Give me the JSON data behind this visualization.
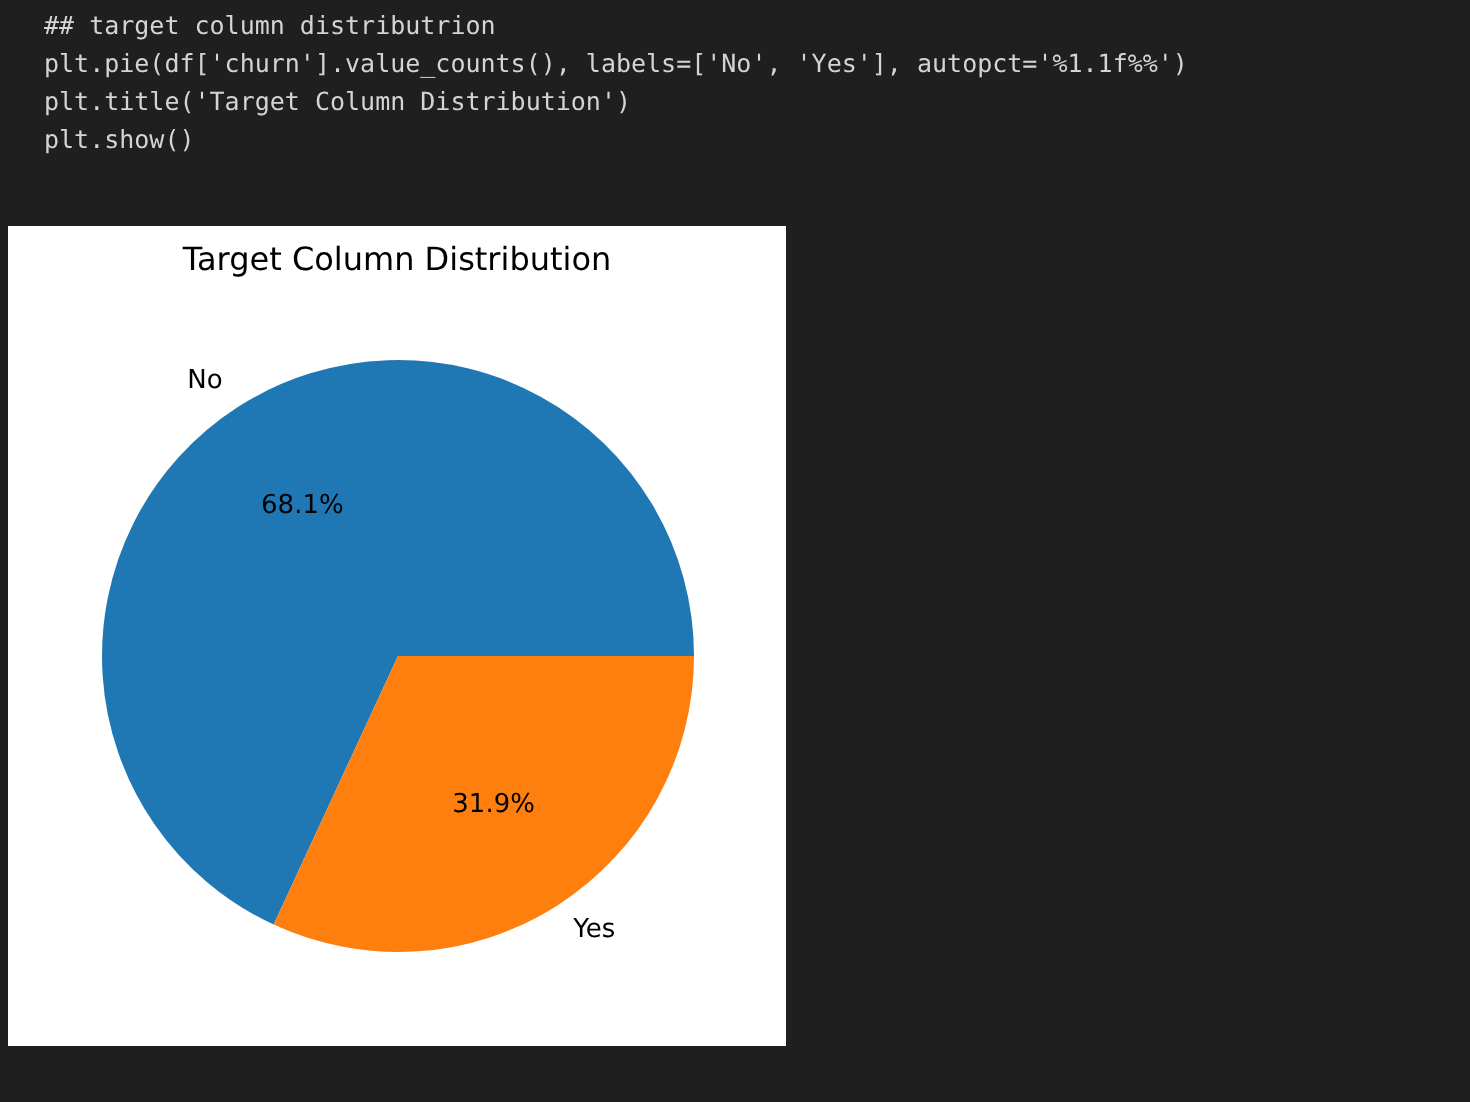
{
  "chart_data": {
    "type": "pie",
    "title": "Target Column Distribution",
    "categories": [
      "No",
      "Yes"
    ],
    "values": [
      68.1,
      31.9
    ],
    "colors": [
      "#1f77b4",
      "#ff7f0e"
    ],
    "value_labels": [
      "68.1%",
      "31.9%"
    ],
    "legend": false,
    "annotations": [
      "## target column distributrion",
      "plt.pie(df['churn'].value_counts(), labels=['No', 'Yes'], autopct='%1.1f%%')",
      "plt.title('Target Column Distribution')",
      "plt.show()"
    ]
  }
}
